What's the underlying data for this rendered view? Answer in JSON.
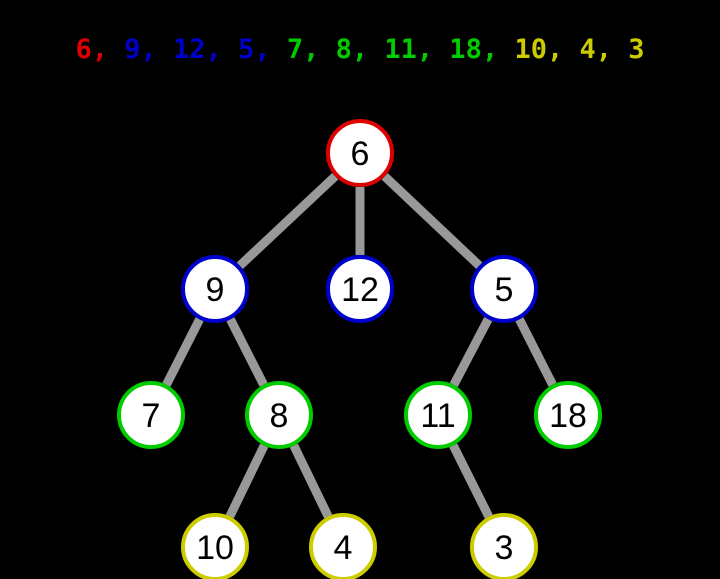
{
  "sequence": [
    {
      "value": "6",
      "level": 0
    },
    {
      "value": "9",
      "level": 1
    },
    {
      "value": "12",
      "level": 1
    },
    {
      "value": "5",
      "level": 1
    },
    {
      "value": "7",
      "level": 2
    },
    {
      "value": "8",
      "level": 2
    },
    {
      "value": "11",
      "level": 2
    },
    {
      "value": "18",
      "level": 2
    },
    {
      "value": "10",
      "level": 3
    },
    {
      "value": "4",
      "level": 3
    },
    {
      "value": "3",
      "level": 3
    }
  ],
  "separator": ", ",
  "level_colors": [
    "#dd0000",
    "#0000cc",
    "#00cc00",
    "#cccc00"
  ],
  "tree": {
    "nodes": [
      {
        "id": "n6",
        "label": "6",
        "level": 0
      },
      {
        "id": "n9",
        "label": "9",
        "level": 1
      },
      {
        "id": "n12",
        "label": "12",
        "level": 1
      },
      {
        "id": "n5",
        "label": "5",
        "level": 1
      },
      {
        "id": "n7",
        "label": "7",
        "level": 2
      },
      {
        "id": "n8",
        "label": "8",
        "level": 2
      },
      {
        "id": "n11",
        "label": "11",
        "level": 2
      },
      {
        "id": "n18",
        "label": "18",
        "level": 2
      },
      {
        "id": "n10",
        "label": "10",
        "level": 3
      },
      {
        "id": "n4",
        "label": "4",
        "level": 3
      },
      {
        "id": "n3",
        "label": "3",
        "level": 3
      }
    ],
    "edges": [
      {
        "from": "n6",
        "to": "n9"
      },
      {
        "from": "n6",
        "to": "n12"
      },
      {
        "from": "n6",
        "to": "n5"
      },
      {
        "from": "n9",
        "to": "n7"
      },
      {
        "from": "n9",
        "to": "n8"
      },
      {
        "from": "n5",
        "to": "n11"
      },
      {
        "from": "n5",
        "to": "n18"
      },
      {
        "from": "n8",
        "to": "n10"
      },
      {
        "from": "n8",
        "to": "n4"
      },
      {
        "from": "n11",
        "to": "n3"
      }
    ],
    "edge_color": "#999999",
    "node_fill": "#ffffff",
    "label_color": "#000000"
  }
}
